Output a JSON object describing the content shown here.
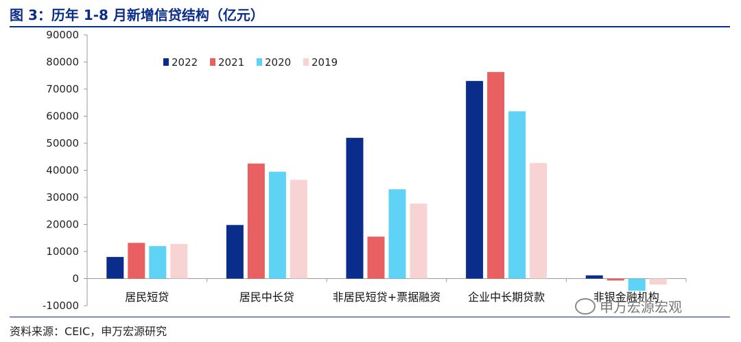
{
  "header": {
    "title": "图 3：历年 1-8 月新增信贷结构（亿元）"
  },
  "footer": {
    "source": "资料来源：CEIC，申万宏源研究",
    "watermark": "申万宏源宏观"
  },
  "colors": {
    "title": "#0a2c8a",
    "s2022": "#0a2d8c",
    "s2021": "#e86062",
    "s2020": "#5fd3f5",
    "s2019": "#f8d3d3"
  },
  "chart_data": {
    "type": "bar",
    "title": "",
    "xlabel": "",
    "ylabel": "",
    "ylim": [
      -10000,
      90000
    ],
    "yticks": [
      -10000,
      0,
      10000,
      20000,
      30000,
      40000,
      50000,
      60000,
      70000,
      80000,
      90000
    ],
    "legend_position": "top-left",
    "grid": false,
    "categories": [
      "居民短贷",
      "居民中长贷",
      "非居民短贷+票据融资",
      "企业中长期贷款",
      "非银金融机构"
    ],
    "series": [
      {
        "name": "2022",
        "color": "#0a2d8c",
        "values": [
          8000,
          19800,
          52000,
          73000,
          1200
        ]
      },
      {
        "name": "2021",
        "color": "#e86062",
        "values": [
          13200,
          42500,
          15500,
          76300,
          -700
        ]
      },
      {
        "name": "2020",
        "color": "#5fd3f5",
        "values": [
          12000,
          39500,
          33000,
          61800,
          -4500
        ]
      },
      {
        "name": "2019",
        "color": "#f8d3d3",
        "values": [
          12800,
          36500,
          27700,
          42700,
          -2200
        ]
      }
    ]
  }
}
